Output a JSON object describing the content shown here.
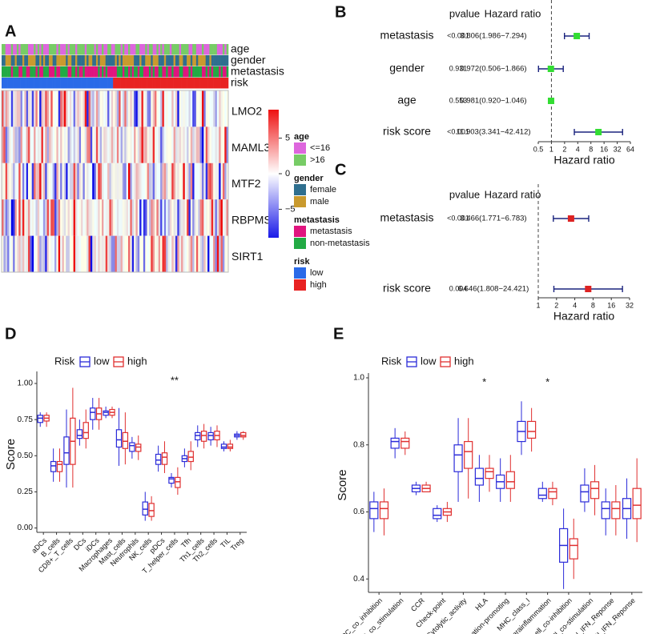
{
  "chart_data": [
    {
      "type": "heatmap",
      "label": "A",
      "rows": [
        "LMO2",
        "MAML3",
        "MTF2",
        "RBPMS",
        "SIRT1"
      ],
      "clim": [
        -9,
        9
      ],
      "colorbar_ticks": [
        5,
        0,
        {
          "value": -5,
          "label": "−5"
        }
      ],
      "legend": [
        {
          "title": "age",
          "items": [
            {
              "name": "<=16",
              "color": "#dd66dd"
            },
            {
              "name": ">16",
              "color": "#77cc66"
            }
          ]
        },
        {
          "title": "gender",
          "items": [
            {
              "name": "female",
              "color": "#2f6f8f"
            },
            {
              "name": "male",
              "color": "#c99a2e"
            }
          ]
        },
        {
          "title": "metastasis",
          "items": [
            {
              "name": "metastasis",
              "color": "#e0157f"
            },
            {
              "name": "non-metastasis",
              "color": "#22aa44"
            }
          ]
        },
        {
          "title": "risk",
          "items": [
            {
              "name": "low",
              "color": "#2a6ae8"
            },
            {
              "name": "high",
              "color": "#e82222"
            }
          ]
        }
      ]
    },
    {
      "type": "forest",
      "label": "B",
      "header": [
        "pvalue",
        "Hazard ratio"
      ],
      "color": "#33dd33",
      "xlog": true,
      "rows": [
        "metastasis",
        "gender",
        "age",
        "risk score"
      ],
      "pvalues": [
        "<0.001",
        "0.931",
        "0.553",
        "<0.001"
      ],
      "hr": [
        3.806,
        0.972,
        0.981,
        11.903
      ],
      "lower": [
        1.986,
        0.506,
        0.92,
        3.341
      ],
      "upper": [
        7.294,
        1.866,
        1.046,
        42.412
      ],
      "hr_labels": [
        "3.806(1.986−7.294)",
        "0.972(0.506−1.866)",
        "0.981(0.920−1.046)",
        "11.903(3.341−42.412)"
      ],
      "reference": 1,
      "xlim": [
        0.5,
        64
      ],
      "xticks": [
        0.5,
        1,
        2,
        4,
        8,
        16,
        32,
        64
      ],
      "xlabel": "Hazard ratio"
    },
    {
      "type": "forest",
      "label": "C",
      "header": [
        "pvalue",
        "Hazard ratio"
      ],
      "color": "#dd2222",
      "xlog": true,
      "rows": [
        "metastasis",
        "risk score"
      ],
      "pvalues": [
        "<0.001",
        "0.004"
      ],
      "hr": [
        3.466,
        6.646
      ],
      "lower": [
        1.771,
        1.808
      ],
      "upper": [
        6.783,
        24.421
      ],
      "hr_labels": [
        "3.466(1.771−6.783)",
        "6.646(1.808−24.421)"
      ],
      "reference": 1,
      "xlim": [
        1,
        32
      ],
      "xticks": [
        1,
        2,
        4,
        8,
        16,
        32
      ],
      "xlabel": "Hazard ratio"
    },
    {
      "type": "box",
      "label": "D",
      "legend_title": "Risk",
      "ylabel": "Score",
      "ylim": [
        -0.03,
        1.05
      ],
      "yticks": [
        {
          "value": 0,
          "label": "0.00"
        },
        {
          "value": 0.25,
          "label": "0.25"
        },
        {
          "value": 0.5,
          "label": "0.50"
        },
        {
          "value": 0.75,
          "label": "0.75"
        },
        {
          "value": 1,
          "label": "1.00"
        }
      ],
      "categories": [
        "aDCs",
        "B_cells",
        "CD8+_T_cells",
        "DCs",
        "iDCs",
        "Macrophages",
        "Mast_cells",
        "Neutrophils",
        "NK_cells",
        "pDCs",
        "T_helper_cells",
        "Tfh",
        "Th1_cells",
        "Th2_cells",
        "TIL",
        "Treg"
      ],
      "significance": [
        null,
        null,
        null,
        null,
        null,
        null,
        null,
        null,
        null,
        null,
        "**",
        null,
        null,
        null,
        null,
        null
      ],
      "series": [
        {
          "name": "low",
          "color": "#2b2bd9",
          "whislo": [
            0.7,
            0.32,
            0.28,
            0.57,
            0.68,
            0.76,
            0.43,
            0.48,
            0.05,
            0.39,
            0.28,
            0.42,
            0.56,
            0.57,
            0.53,
            0.61
          ],
          "q1": [
            0.73,
            0.39,
            0.44,
            0.62,
            0.75,
            0.78,
            0.56,
            0.53,
            0.09,
            0.44,
            0.31,
            0.46,
            0.61,
            0.61,
            0.55,
            0.63
          ],
          "median": [
            0.76,
            0.43,
            0.52,
            0.64,
            0.8,
            0.8,
            0.61,
            0.57,
            0.13,
            0.47,
            0.34,
            0.48,
            0.64,
            0.64,
            0.56,
            0.64
          ],
          "q3": [
            0.78,
            0.46,
            0.63,
            0.68,
            0.83,
            0.81,
            0.68,
            0.59,
            0.18,
            0.51,
            0.35,
            0.5,
            0.66,
            0.66,
            0.58,
            0.65
          ],
          "whishi": [
            0.8,
            0.55,
            0.82,
            0.75,
            0.9,
            0.84,
            0.83,
            0.63,
            0.25,
            0.57,
            0.38,
            0.55,
            0.71,
            0.7,
            0.6,
            0.67
          ]
        },
        {
          "name": "high",
          "color": "#e03030",
          "whislo": [
            0.7,
            0.32,
            0.28,
            0.55,
            0.68,
            0.76,
            0.44,
            0.47,
            0.05,
            0.38,
            0.23,
            0.4,
            0.55,
            0.56,
            0.53,
            0.61
          ],
          "q1": [
            0.74,
            0.39,
            0.44,
            0.62,
            0.75,
            0.78,
            0.55,
            0.53,
            0.08,
            0.44,
            0.28,
            0.46,
            0.6,
            0.61,
            0.55,
            0.63
          ],
          "median": [
            0.76,
            0.44,
            0.6,
            0.66,
            0.79,
            0.8,
            0.6,
            0.56,
            0.12,
            0.49,
            0.32,
            0.49,
            0.64,
            0.64,
            0.56,
            0.64
          ],
          "q3": [
            0.78,
            0.46,
            0.76,
            0.73,
            0.83,
            0.82,
            0.66,
            0.58,
            0.17,
            0.52,
            0.35,
            0.53,
            0.67,
            0.67,
            0.58,
            0.66
          ],
          "whishi": [
            0.8,
            0.55,
            0.97,
            0.82,
            0.9,
            0.84,
            0.8,
            0.64,
            0.22,
            0.6,
            0.42,
            0.6,
            0.72,
            0.71,
            0.61,
            0.67
          ]
        }
      ]
    },
    {
      "type": "box",
      "label": "E",
      "legend_title": "Risk",
      "ylabel": "Score",
      "ylim": [
        0.36,
        1.0
      ],
      "yticks": [
        0.4,
        0.6,
        0.8,
        {
          "value": 1,
          "label": "1.0"
        }
      ],
      "categories": [
        "APC_co_inhibition",
        "APC_co_stimulation",
        "CCR",
        "Check-point",
        "Cytolytic_activity",
        "HLA",
        "Inflammation-promoting",
        "MHC_class_I",
        "Parainflammation",
        "T_cell_co-inhibition",
        "T_cell_co-stimulation",
        "Type_I_IFN_Reponse",
        "Type_II_IFN_Reponse"
      ],
      "significance": [
        null,
        null,
        null,
        null,
        null,
        "*",
        null,
        null,
        "*",
        null,
        null,
        null,
        null
      ],
      "series": [
        {
          "name": "low",
          "color": "#2b2bd9",
          "whislo": [
            0.54,
            0.76,
            0.65,
            0.57,
            0.63,
            0.63,
            0.63,
            0.77,
            0.63,
            0.37,
            0.6,
            0.53,
            0.52
          ],
          "q1": [
            0.58,
            0.79,
            0.66,
            0.58,
            0.72,
            0.68,
            0.67,
            0.81,
            0.64,
            0.45,
            0.63,
            0.58,
            0.58
          ],
          "median": [
            0.61,
            0.81,
            0.67,
            0.59,
            0.77,
            0.7,
            0.69,
            0.84,
            0.65,
            0.5,
            0.66,
            0.61,
            0.61
          ],
          "q3": [
            0.63,
            0.82,
            0.68,
            0.61,
            0.8,
            0.73,
            0.71,
            0.87,
            0.67,
            0.55,
            0.68,
            0.63,
            0.64
          ],
          "whishi": [
            0.66,
            0.85,
            0.69,
            0.62,
            0.88,
            0.77,
            0.76,
            0.93,
            0.69,
            0.61,
            0.73,
            0.67,
            0.7
          ]
        },
        {
          "name": "high",
          "color": "#e03030",
          "whislo": [
            0.53,
            0.77,
            0.66,
            0.57,
            0.64,
            0.66,
            0.63,
            0.78,
            0.62,
            0.4,
            0.59,
            0.53,
            0.51
          ],
          "q1": [
            0.58,
            0.79,
            0.66,
            0.59,
            0.73,
            0.7,
            0.67,
            0.82,
            0.64,
            0.46,
            0.64,
            0.58,
            0.58
          ],
          "median": [
            0.61,
            0.81,
            0.67,
            0.6,
            0.78,
            0.72,
            0.69,
            0.84,
            0.66,
            0.5,
            0.67,
            0.61,
            0.62
          ],
          "q3": [
            0.63,
            0.82,
            0.68,
            0.61,
            0.81,
            0.73,
            0.72,
            0.87,
            0.67,
            0.52,
            0.69,
            0.63,
            0.67
          ],
          "whishi": [
            0.67,
            0.84,
            0.69,
            0.63,
            0.88,
            0.77,
            0.77,
            0.91,
            0.69,
            0.58,
            0.74,
            0.68,
            0.76
          ]
        }
      ]
    }
  ]
}
